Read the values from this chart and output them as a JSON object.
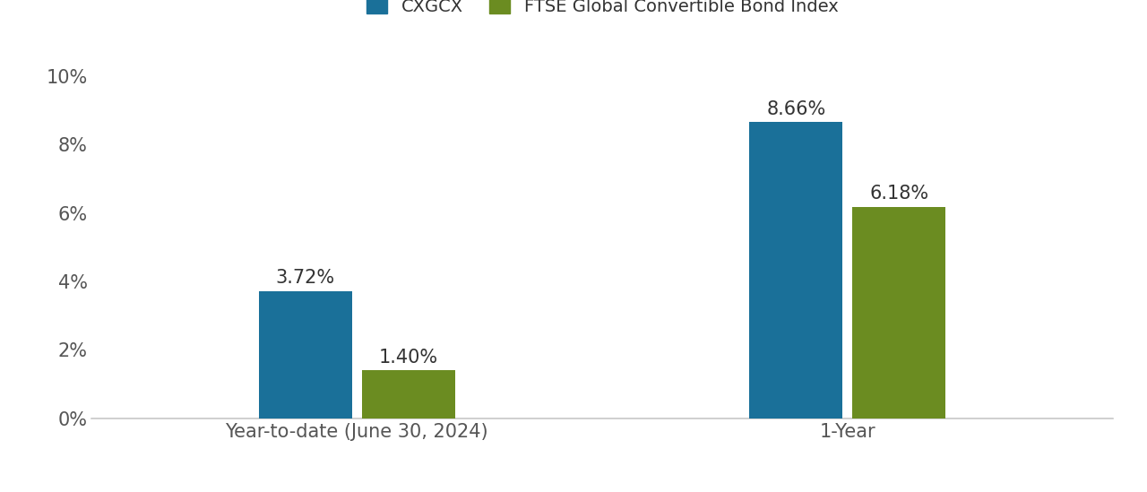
{
  "categories": [
    "Year-to-date (June 30, 2024)",
    "1-Year"
  ],
  "series": [
    {
      "name": "CXGCX",
      "values": [
        3.72,
        8.66
      ],
      "color": "#1a7099"
    },
    {
      "name": "FTSE Global Convertible Bond Index",
      "values": [
        1.4,
        6.18
      ],
      "color": "#6b8c21"
    }
  ],
  "ylim": [
    0,
    10.5
  ],
  "yticks": [
    0,
    2,
    4,
    6,
    8,
    10
  ],
  "ytick_labels": [
    "0%",
    "2%",
    "4%",
    "6%",
    "8%",
    "10%"
  ],
  "background_color": "#ffffff",
  "bar_width": 0.38,
  "bar_gap": 0.04,
  "group_positions": [
    1.0,
    3.0
  ],
  "label_fontsize": 14,
  "tick_fontsize": 15,
  "legend_fontsize": 14,
  "value_label_fontsize": 15,
  "spine_color": "#cccccc",
  "text_color": "#555555",
  "value_color": "#333333"
}
